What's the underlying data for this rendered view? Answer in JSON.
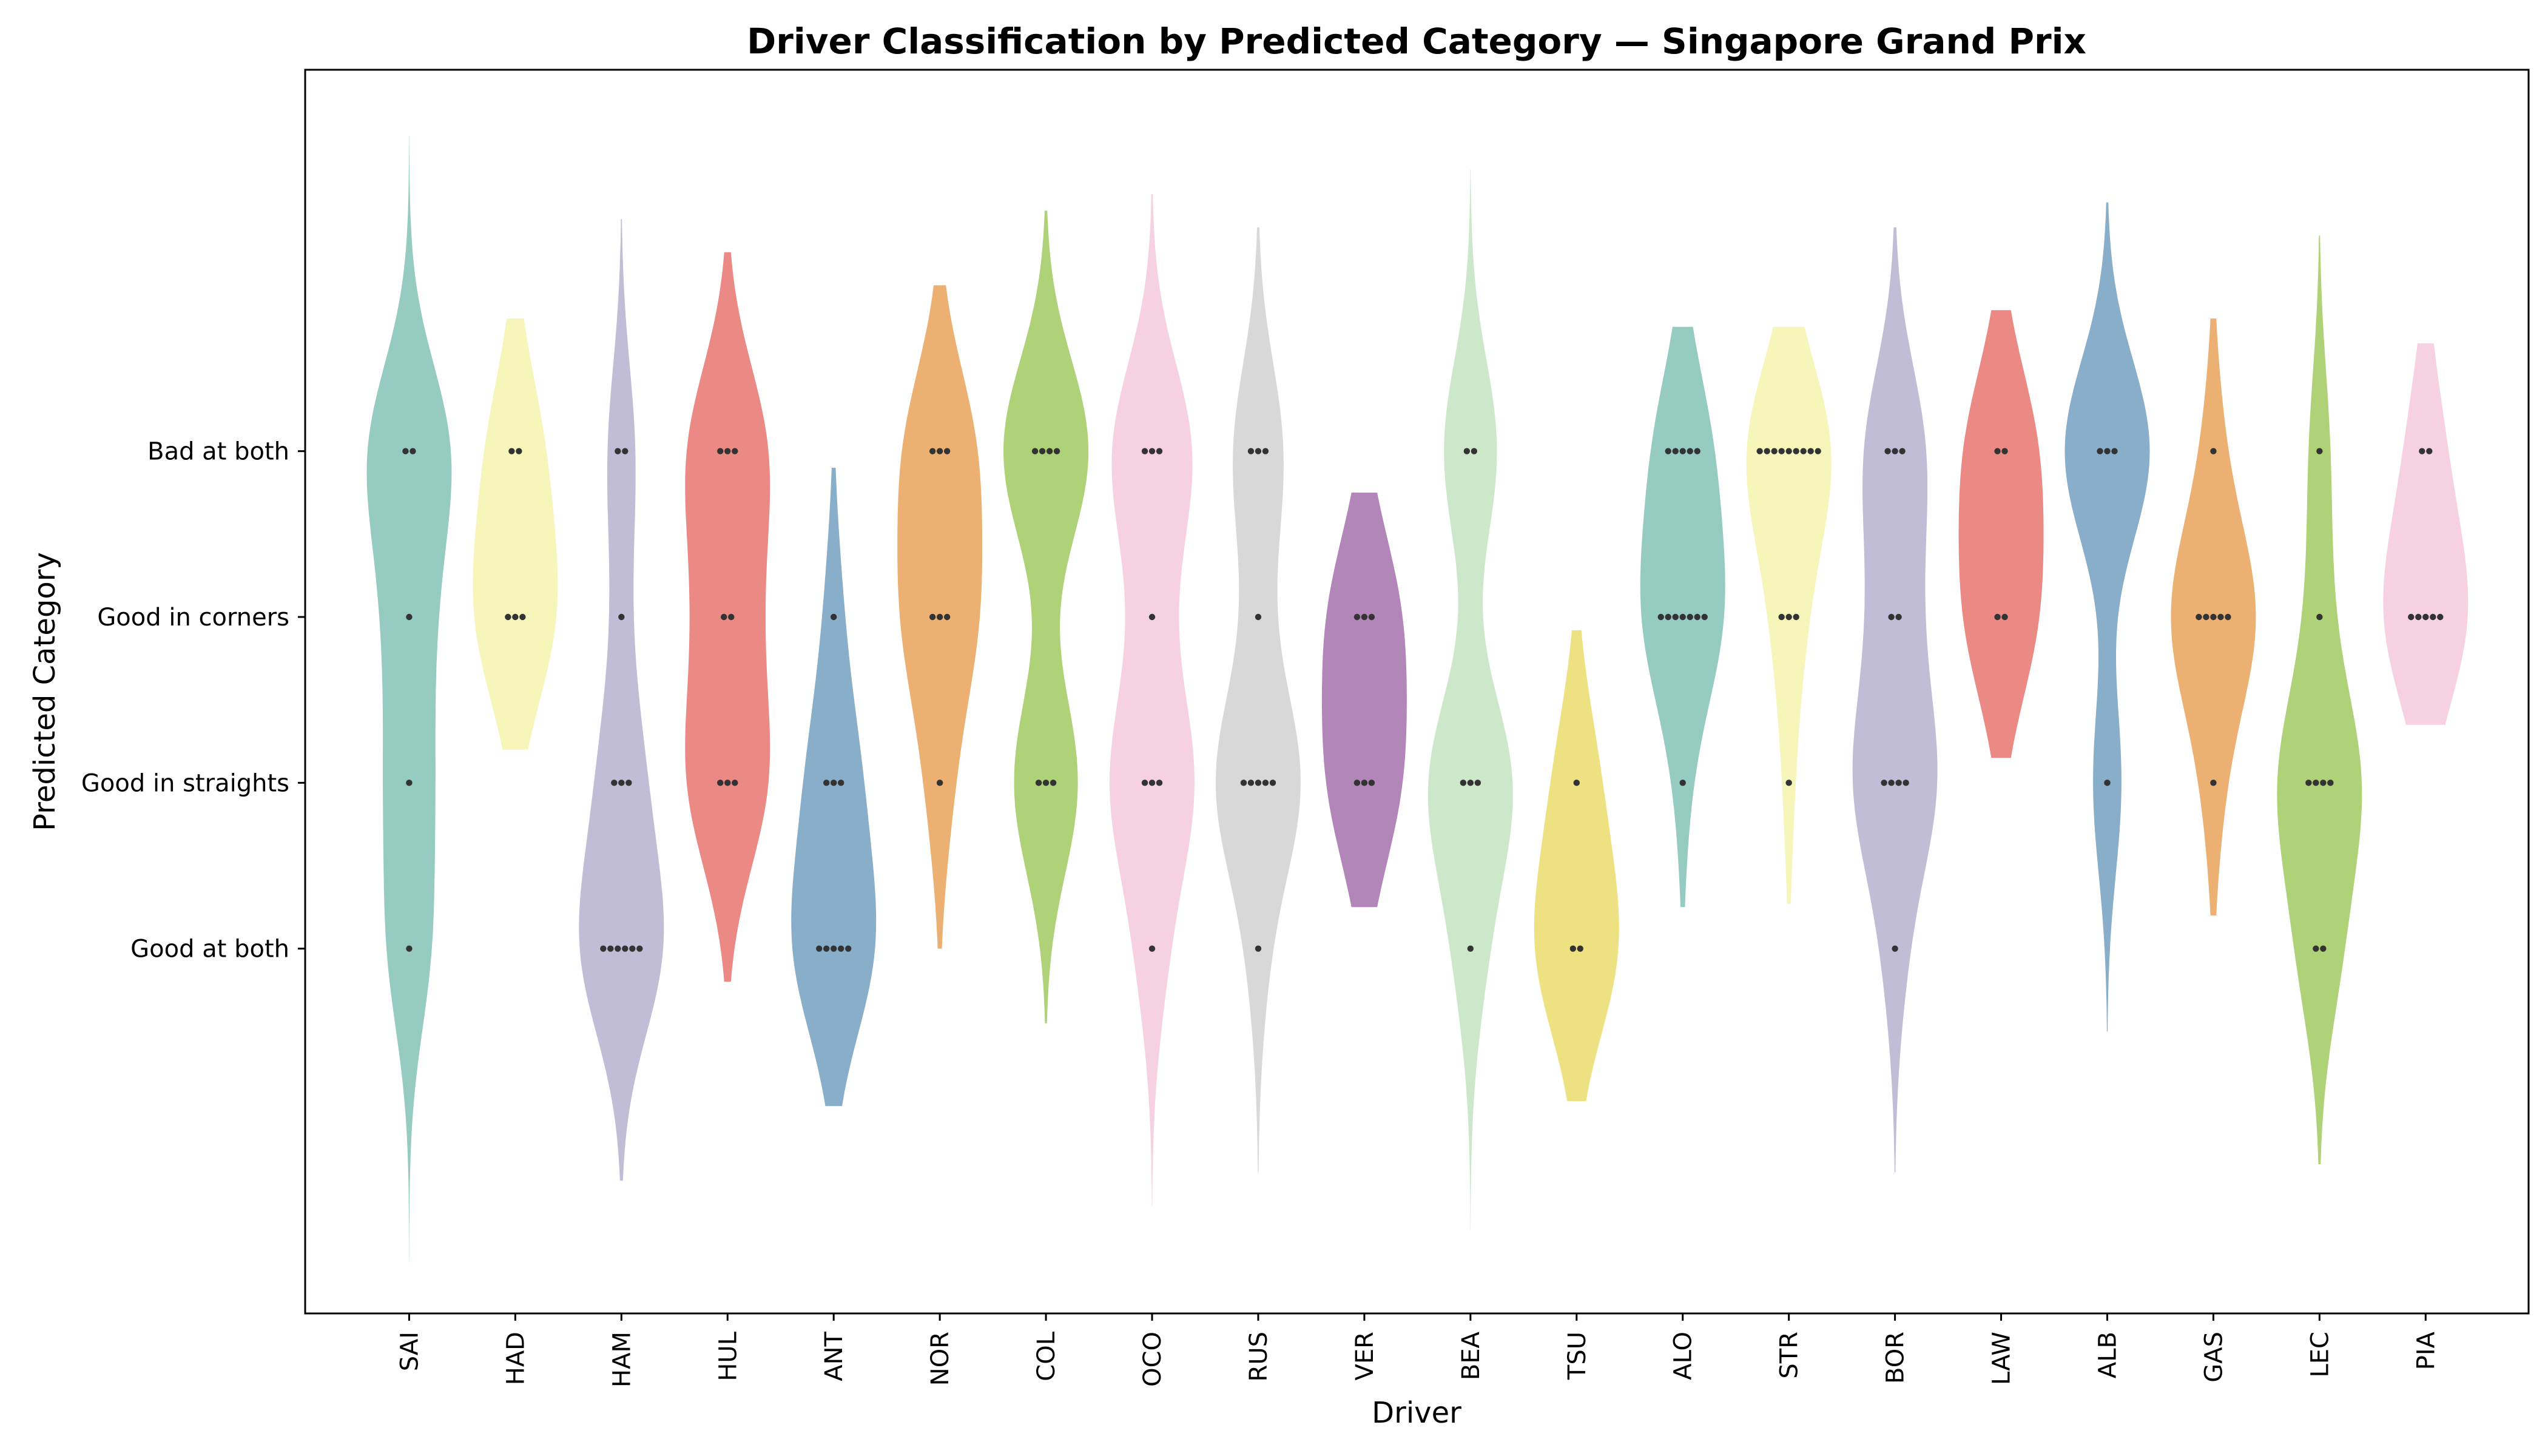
{
  "chart_data": {
    "type": "violin",
    "title": "Driver Classification by Predicted Category — Singapore Grand Prix",
    "xlabel": "Driver",
    "ylabel": "Predicted Category",
    "categories_y": [
      "Good at both",
      "Good in straights",
      "Good in corners",
      "Bad at both"
    ],
    "y_codes": [
      0,
      1,
      2,
      3
    ],
    "ylim": [
      -2.2,
      5.3
    ],
    "grid": false,
    "palette": [
      "#8dc7bd",
      "#f5f5b5",
      "#bcb7d4",
      "#e9807a",
      "#7ea7c5",
      "#eaa967",
      "#a8cd6d",
      "#f4cde0",
      "#d5d5d5",
      "#ab7cb3",
      "#c8e5c6",
      "#ebde77"
    ],
    "drivers": [
      {
        "name": "SAI",
        "counts": [
          1,
          1,
          1,
          2
        ],
        "extent": [
          -1.9,
          4.9
        ]
      },
      {
        "name": "HAD",
        "counts": [
          0,
          0,
          3,
          2
        ],
        "extent": [
          1.2,
          3.8
        ]
      },
      {
        "name": "HAM",
        "counts": [
          6,
          3,
          1,
          2
        ],
        "extent": [
          -1.4,
          4.4
        ]
      },
      {
        "name": "HUL",
        "counts": [
          0,
          3,
          2,
          3
        ],
        "extent": [
          -0.2,
          4.2
        ]
      },
      {
        "name": "ANT",
        "counts": [
          5,
          3,
          1,
          0
        ],
        "extent": [
          -0.95,
          2.9
        ]
      },
      {
        "name": "NOR",
        "counts": [
          0,
          1,
          3,
          3
        ],
        "extent": [
          0.0,
          4.0
        ]
      },
      {
        "name": "COL",
        "counts": [
          0,
          3,
          0,
          4
        ],
        "extent": [
          -0.45,
          4.45
        ]
      },
      {
        "name": "OCO",
        "counts": [
          1,
          3,
          1,
          3
        ],
        "extent": [
          -1.55,
          4.55
        ]
      },
      {
        "name": "RUS",
        "counts": [
          1,
          5,
          1,
          3
        ],
        "extent": [
          -1.35,
          4.35
        ]
      },
      {
        "name": "VER",
        "counts": [
          0,
          3,
          3,
          0
        ],
        "extent": [
          0.25,
          2.75
        ]
      },
      {
        "name": "BEA",
        "counts": [
          1,
          3,
          0,
          2
        ],
        "extent": [
          -1.7,
          4.7
        ]
      },
      {
        "name": "TSU",
        "counts": [
          2,
          1,
          0,
          0
        ],
        "extent": [
          -0.92,
          1.92
        ]
      },
      {
        "name": "ALO",
        "counts": [
          0,
          1,
          7,
          5
        ],
        "extent": [
          0.25,
          3.75
        ]
      },
      {
        "name": "STR",
        "counts": [
          0,
          1,
          3,
          9
        ],
        "extent": [
          0.27,
          3.75
        ]
      },
      {
        "name": "BOR",
        "counts": [
          1,
          4,
          2,
          3
        ],
        "extent": [
          -1.35,
          4.35
        ]
      },
      {
        "name": "LAW",
        "counts": [
          0,
          0,
          2,
          2
        ],
        "extent": [
          1.15,
          3.85
        ]
      },
      {
        "name": "ALB",
        "counts": [
          0,
          1,
          0,
          3
        ],
        "extent": [
          -0.5,
          4.5
        ]
      },
      {
        "name": "GAS",
        "counts": [
          0,
          1,
          5,
          1
        ],
        "extent": [
          0.2,
          3.8
        ]
      },
      {
        "name": "LEC",
        "counts": [
          2,
          4,
          1,
          1
        ],
        "extent": [
          -1.3,
          4.3
        ]
      },
      {
        "name": "PIA",
        "counts": [
          0,
          0,
          5,
          2
        ],
        "extent": [
          1.35,
          3.65
        ]
      }
    ]
  }
}
